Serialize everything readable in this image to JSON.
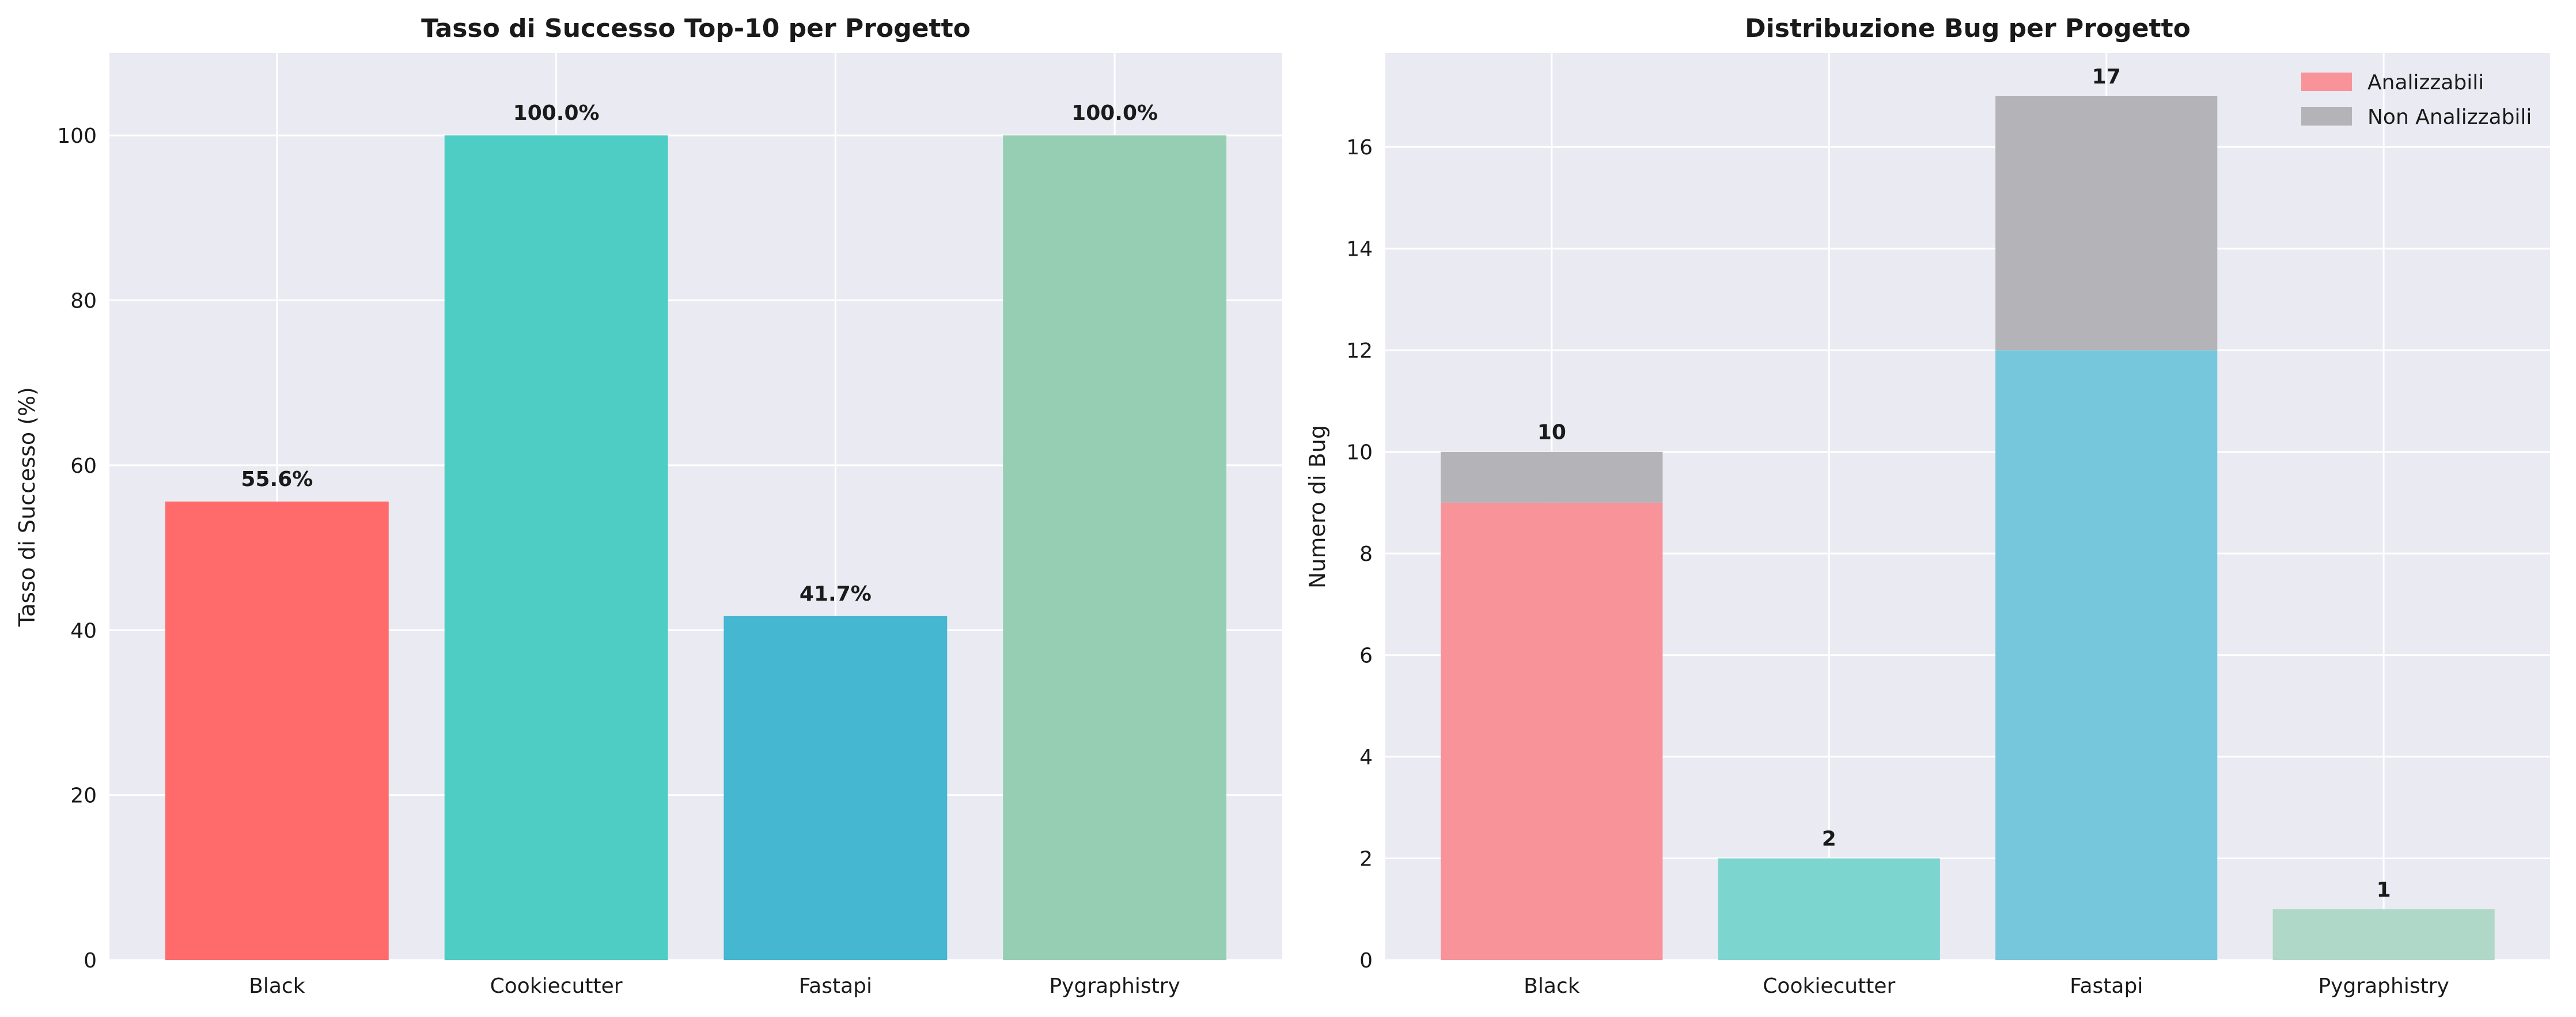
{
  "chart_data": [
    {
      "type": "bar",
      "title": "Tasso di Successo Top-10 per Progetto",
      "xlabel": "",
      "ylabel": "Tasso di Successo (%)",
      "categories": [
        "Black",
        "Cookiecutter",
        "Fastapi",
        "Pygraphistry"
      ],
      "values": [
        55.6,
        100.0,
        41.7,
        100.0
      ],
      "data_labels": [
        "55.6%",
        "100.0%",
        "41.7%",
        "100.0%"
      ],
      "colors": [
        "#FF6B6B",
        "#4ECDC4",
        "#45B7D1",
        "#96CEB4"
      ],
      "ylim": [
        0,
        110
      ],
      "yticks": [
        0,
        20,
        40,
        60,
        80,
        100
      ],
      "grid": true
    },
    {
      "type": "bar",
      "stacked": true,
      "title": "Distribuzione Bug per Progetto",
      "xlabel": "",
      "ylabel": "Numero di Bug",
      "categories": [
        "Black",
        "Cookiecutter",
        "Fastapi",
        "Pygraphistry"
      ],
      "series": [
        {
          "name": "Analizzabili",
          "values": [
            9,
            2,
            12,
            1
          ],
          "colors": [
            "#F8939A",
            "#7DD5D0",
            "#76C6DC",
            "#B0D8C8"
          ],
          "legend_color": "#F8939A"
        },
        {
          "name": "Non Analizzabili",
          "values": [
            1,
            0,
            5,
            0
          ],
          "color": "#B3B3B8"
        }
      ],
      "totals": [
        10,
        2,
        17,
        1
      ],
      "ylim": [
        0,
        17.85
      ],
      "yticks": [
        0,
        2,
        4,
        6,
        8,
        10,
        12,
        14,
        16
      ],
      "legend_position": "top-right",
      "grid": true
    }
  ]
}
